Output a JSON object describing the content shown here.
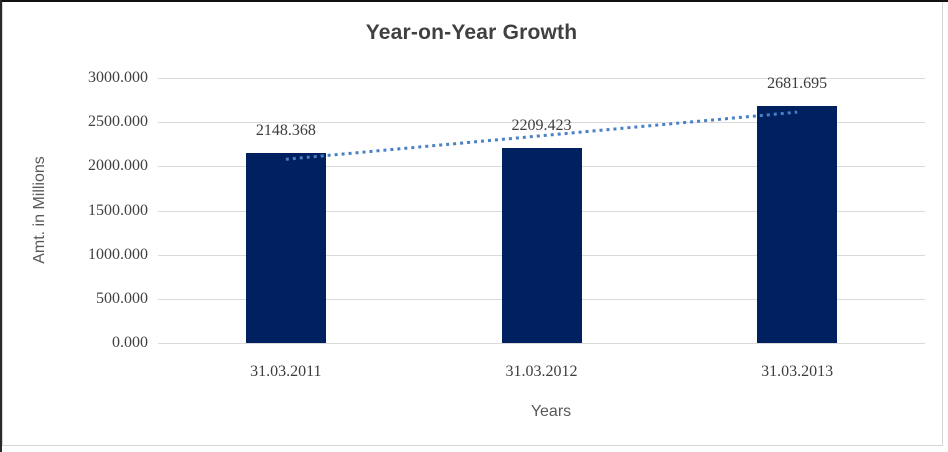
{
  "window": {
    "background": "#ffffff",
    "top_border_color": "#111111",
    "chart_border_color": "#d6d6d6"
  },
  "chart_data": {
    "type": "bar",
    "title": "Year-on-Year Growth",
    "xlabel": "Years",
    "ylabel": "Amt. in Millions",
    "categories": [
      "31.03.2011",
      "31.03.2012",
      "31.03.2013"
    ],
    "values": [
      2148.368,
      2209.423,
      2681.695
    ],
    "data_labels": [
      "2148.368",
      "2209.423",
      "2681.695"
    ],
    "ylim": [
      0,
      3000
    ],
    "ytick_step": 500,
    "ytick_labels": [
      "0.000",
      "500.000",
      "1000.000",
      "1500.000",
      "2000.000",
      "2500.000",
      "3000.000"
    ],
    "grid": true,
    "legend": "none",
    "bar_color": "#002060",
    "gridline_color": "#d9d9d9",
    "trendline": {
      "type": "linear",
      "style": "dotted",
      "color": "#4a80c4"
    }
  },
  "styles": {
    "title_color": "#404040",
    "tick_label_color": "#404040",
    "axis_title_color": "#595959"
  }
}
